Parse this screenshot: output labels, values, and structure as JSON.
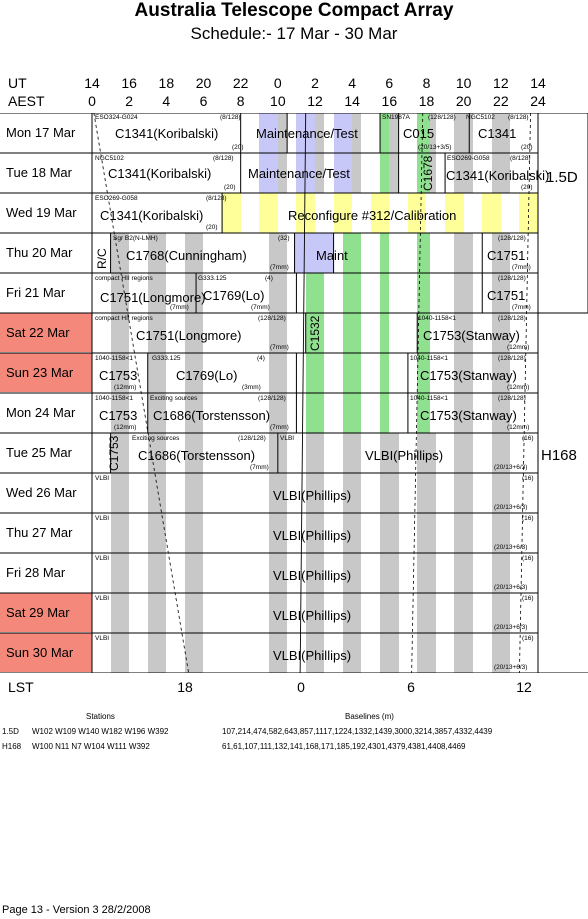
{
  "title": "Australia Telescope Compact Array",
  "subtitle": "Schedule:- 17 Mar - 30 Mar",
  "ut_label": "UT",
  "aest_label": "AEST",
  "ut_ticks": [
    "14",
    "16",
    "18",
    "20",
    "22",
    "0",
    "2",
    "4",
    "6",
    "8",
    "10",
    "12",
    "14"
  ],
  "aest_ticks": [
    "0",
    "2",
    "4",
    "6",
    "8",
    "10",
    "12",
    "14",
    "16",
    "18",
    "20",
    "22",
    "24"
  ],
  "lst_label": "LST",
  "lst_ticks": [
    "18",
    "0",
    "6",
    "12"
  ],
  "days": [
    {
      "label": "Mon  17 Mar",
      "weekend": false
    },
    {
      "label": "Tue  18 Mar",
      "weekend": false
    },
    {
      "label": "Wed  19 Mar",
      "weekend": false
    },
    {
      "label": "Thu  20 Mar",
      "weekend": false
    },
    {
      "label": "Fri   21 Mar",
      "weekend": false
    },
    {
      "label": "Sat  22 Mar",
      "weekend": true
    },
    {
      "label": "Sun  23 Mar",
      "weekend": true
    },
    {
      "label": "Mon  24 Mar",
      "weekend": false
    },
    {
      "label": "Tue  25 Mar",
      "weekend": false
    },
    {
      "label": "Wed  26 Mar",
      "weekend": false
    },
    {
      "label": "Thu  27 Mar",
      "weekend": false
    },
    {
      "label": "Fri   28 Mar",
      "weekend": false
    },
    {
      "label": "Sat  29 Mar",
      "weekend": true
    },
    {
      "label": "Sun  30 Mar",
      "weekend": true
    }
  ],
  "configs": [
    "1.5D",
    "H168"
  ],
  "blocks": {
    "r0": {
      "a_small": "ESO324-G024",
      "a_code": "(8/128)",
      "a_big": "C1341(Koribalski)",
      "a_foot": "(20)",
      "maint": "Maintenance/Test",
      "b_small": "SN1987A",
      "b_code": "(128/128)",
      "b_big": "C015",
      "b_foot": "(20/13+3/5)",
      "c_small": "NGC5102",
      "c_code": "(8/128)",
      "c_big": "C1341",
      "c_foot": "(20)"
    },
    "r1": {
      "a_small": "NGC5102",
      "a_code": "(8/128)",
      "a_big": "C1341(Koribalski)",
      "a_foot": "(20)",
      "maint": "Maintenance/Test",
      "vert": "C1678",
      "c_small": "ESO269-G058",
      "c_code": "(8/128)",
      "c_big": "C1341(Koribalski)",
      "c_foot": "(20)"
    },
    "r2": {
      "a_small": "ESO269-G058",
      "a_code": "(8/128)",
      "a_big": "C1341(Koribalski)",
      "a_foot": "(20)",
      "reconf": "Reconfigure #312/Calibration"
    },
    "r3": {
      "rc": "R/C",
      "a_small": "Sgr B2(N-LMH)",
      "a_code": "(32)",
      "a_big": "C1768(Cunningham)",
      "a_foot": "(7mm)",
      "maint": "Maint",
      "c_code": "(128/128)",
      "c_big": "C1751",
      "c_foot": "(7mm)"
    },
    "r4": {
      "a_small": "compact HII regions",
      "a_big": "C1751(Longmore)",
      "a_foot": "(7mm)",
      "b_small": "G333.125",
      "b_code": "(4)",
      "b_big": "C1769(Lo)",
      "b_foot": "(7mm)",
      "c_code": "(128/128)",
      "c_big": "C1751",
      "c_foot": "(7mm)"
    },
    "r5": {
      "a_small": "compact HII regions",
      "a_code": "(128/128)",
      "a_big": "C1751(Longmore)",
      "a_foot": "(7mm)",
      "vert": "C1532",
      "c_small": "1040-1158<1",
      "c_code": "(128/128)",
      "c_big": "C1753(Stanway)",
      "c_foot": "(12mm)"
    },
    "r6": {
      "a_small": "1040-1158<1",
      "a_big": "C1753",
      "a_foot": "(12mm)",
      "b_small": "G333.125",
      "b_code": "(4)",
      "b_big": "C1769(Lo)",
      "b_foot": "(3mm)",
      "c_small": "1040-1158<1",
      "c_code": "(128/128)",
      "c_big": "C1753(Stanway)",
      "c_foot": "(12mm)"
    },
    "r7": {
      "a_small": "1040-1158<1",
      "a_big": "C1753",
      "a_foot": "(12mm)",
      "b_small": "Exciting sources",
      "b_code": "(128/128)",
      "b_big": "C1686(Torstensson)",
      "b_foot": "(7mm)",
      "c_small": "1040-1158<1",
      "c_code": "(128/128)",
      "c_big": "C1753(Stanway)",
      "c_foot": "(12mm)"
    },
    "r8": {
      "vert": "C1753",
      "b_small": "Exciting sources",
      "b_code": "(128/128)",
      "b_big": "C1686(Torstensson)",
      "b_foot": "(7mm)",
      "v_small": "VLBI",
      "vlbi": "VLBI(Phillips)",
      "v_code": "(16)",
      "v_foot": "(20/13+6/3)"
    },
    "vlbi_small": "VLBI",
    "vlbi_text": "VLBI(Phillips)",
    "vlbi_code": "(16)",
    "vlbi_foot": "(20/13+6/3)"
  },
  "stations": {
    "header": "Stations",
    "baselines_header": "Baselines (m)",
    "rows": [
      {
        "config": "1.5D",
        "stations": "W102 W109 W140 W182 W196 W392",
        "baselines": "107,214,474,582,643,857,1117,1224,1332,1439,3000,3214,3857,4332,4439"
      },
      {
        "config": "H168",
        "stations": "W100 N11 N7 W104 W111 W392",
        "baselines": "61,61,107,111,132,141,168,171,185,192,4301,4379,4381,4408,4469"
      }
    ]
  },
  "footer": "Page 13 - Version 3  28/2/2008",
  "colors": {
    "weekend": "#f4887a",
    "gray": "#c8c8c8",
    "green": "#8fe08f",
    "lavender": "#c8c8f8",
    "yellow": "#ffff99"
  }
}
